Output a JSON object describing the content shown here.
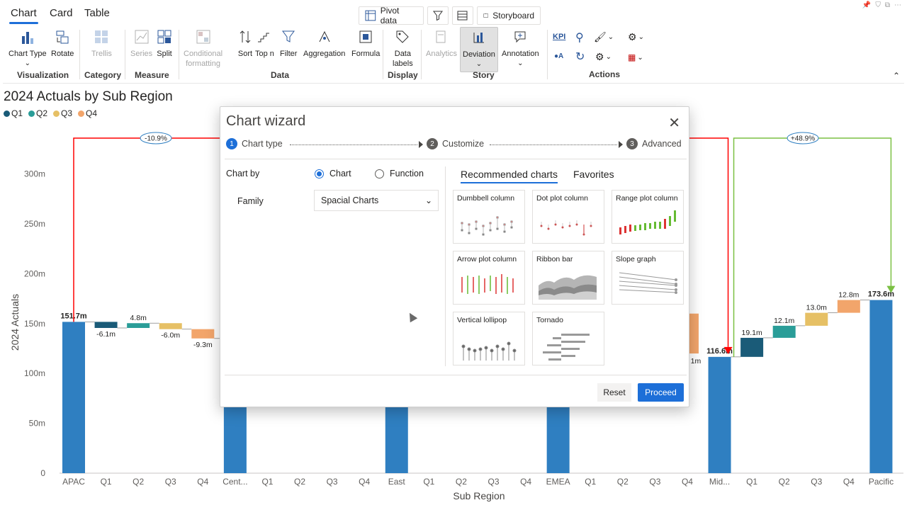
{
  "tabs": [
    "Chart",
    "Card",
    "Table"
  ],
  "toolbar": {
    "pivot_label": "Pivot data",
    "storyboard_label": "Storyboard"
  },
  "ribbon": {
    "chart_type": "Chart Type",
    "rotate": "Rotate",
    "visualization": "Visualization",
    "trellis": "Trellis",
    "category": "Category",
    "series": "Series",
    "split": "Split",
    "measure": "Measure",
    "conditional": "Conditional",
    "formatting": "formatting",
    "sort": "Sort",
    "topn": "Top n",
    "filter": "Filter",
    "aggregation": "Aggregation",
    "formula": "Formula",
    "data": "Data",
    "data_labels_1": "Data",
    "data_labels_2": "labels",
    "display": "Display",
    "analytics": "Analytics",
    "deviation": "Deviation",
    "annotation": "Annotation",
    "story": "Story",
    "kpi": "KPI",
    "actions": "Actions"
  },
  "chart_data": {
    "type": "bar",
    "title": "2024 Actuals by Sub Region",
    "xlabel": "Sub Region",
    "ylabel": "2024 Actuals",
    "ylim": [
      0,
      350
    ],
    "yticks": [
      "0",
      "50m",
      "100m",
      "150m",
      "200m",
      "250m",
      "300m"
    ],
    "legend": [
      "Q1",
      "Q2",
      "Q3",
      "Q4"
    ],
    "categories": [
      "APAC",
      "Q1",
      "Q2",
      "Q3",
      "Q4",
      "Cent...",
      "Q1",
      "Q2",
      "Q3",
      "Q4",
      "East",
      "Q1",
      "Q2",
      "Q3",
      "Q4",
      "EMEA",
      "Q1",
      "Q2",
      "Q3",
      "Q4",
      "Mid...",
      "Q1",
      "Q2",
      "Q3",
      "Q4",
      "Pacific"
    ],
    "totals": [
      {
        "label": "151.7m",
        "value": 151.7
      },
      {
        "label": "116.6m",
        "value": 116.6
      },
      {
        "label": "173.6m",
        "value": 173.6
      }
    ],
    "deltas": [
      {
        "category": "Q1",
        "label": "-6.1m",
        "value": -6.1
      },
      {
        "category": "Q2",
        "label": "4.8m",
        "value": 4.8
      },
      {
        "category": "Q3",
        "label": "-6.0m",
        "value": -6.0
      },
      {
        "category": "Q4",
        "label": "-9.3m",
        "value": -9.3
      },
      {
        "category": "Q1",
        "label": "19.1m",
        "value": 19.1
      },
      {
        "category": "Q2",
        "label": "12.1m",
        "value": 12.1
      },
      {
        "category": "Q3",
        "label": "13.0m",
        "value": 13.0
      },
      {
        "category": "Q4",
        "label": "12.8m",
        "value": 12.8
      }
    ],
    "partial_label": "1m",
    "deviations": [
      "-10.9%",
      "+48.9%"
    ],
    "colors": {
      "total": "#2f7fc1",
      "q1": "#1a5b78",
      "q2": "#2a9d98",
      "q3": "#e6c065",
      "q4": "#f2a56b",
      "negative": "#ff0000",
      "positive": "#7bc043"
    }
  },
  "dialog": {
    "title": "Chart wizard",
    "steps": [
      {
        "num": "1",
        "label": "Chart type"
      },
      {
        "num": "2",
        "label": "Customize"
      },
      {
        "num": "3",
        "label": "Advanced"
      }
    ],
    "chart_by_label": "Chart by",
    "radio_chart": "Chart",
    "radio_function": "Function",
    "family_label": "Family",
    "family_value": "Spacial Charts",
    "tab_recommended": "Recommended charts",
    "tab_favorites": "Favorites",
    "thumbnails": [
      "Dumbbell column",
      "Dot plot column",
      "Range plot column",
      "Arrow plot column",
      "Ribbon bar",
      "Slope graph",
      "Vertical lollipop",
      "Tornado"
    ],
    "reset": "Reset",
    "proceed": "Proceed"
  }
}
